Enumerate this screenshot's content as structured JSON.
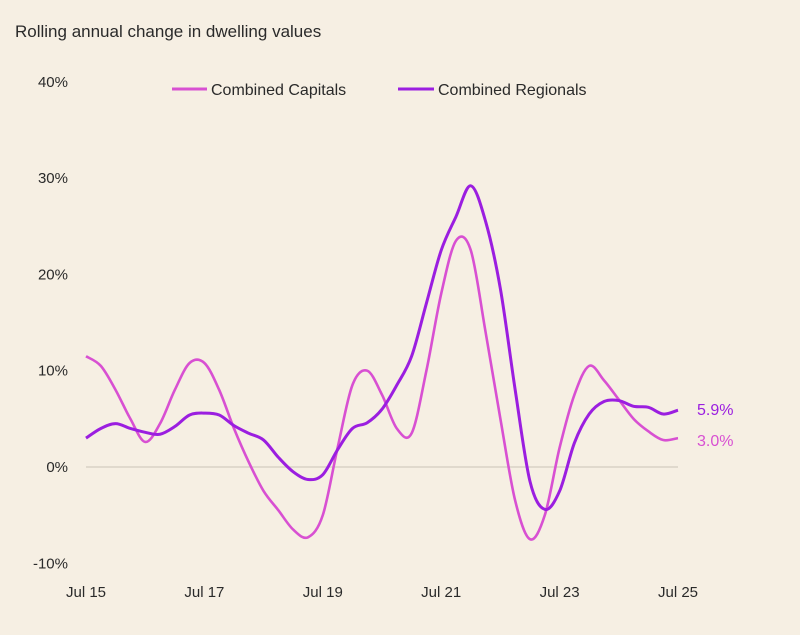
{
  "chart_data": {
    "type": "line",
    "title": "Rolling annual change in dwelling values",
    "xlabel": "",
    "ylabel": "",
    "ylim": [
      -10,
      40
    ],
    "yticks": [
      "-10%",
      "0%",
      "10%",
      "20%",
      "30%",
      "40%"
    ],
    "ytick_values": [
      -10,
      0,
      10,
      20,
      30,
      40
    ],
    "xticks": [
      "Jul 15",
      "Jul 17",
      "Jul 19",
      "Jul 21",
      "Jul 23",
      "Jul 25"
    ],
    "x": [
      "Jul 15",
      "Oct 15",
      "Jan 16",
      "Apr 16",
      "Jul 16",
      "Oct 16",
      "Jan 17",
      "Apr 17",
      "Jul 17",
      "Oct 17",
      "Jan 18",
      "Apr 18",
      "Jul 18",
      "Oct 18",
      "Jan 19",
      "Apr 19",
      "Jul 19",
      "Oct 19",
      "Jan 20",
      "Apr 20",
      "Jul 20",
      "Oct 20",
      "Jan 21",
      "Apr 21",
      "Jul 21",
      "Oct 21",
      "Jan 22",
      "Apr 22",
      "Jul 22",
      "Oct 22",
      "Jan 23",
      "Apr 23",
      "Jul 23",
      "Oct 23",
      "Jan 24",
      "Apr 24",
      "Jul 24",
      "Oct 24",
      "Jan 25",
      "Apr 25",
      "Jul 25"
    ],
    "grid": false,
    "zero_line": true,
    "legend_position": "top",
    "series": [
      {
        "name": "Combined Capitals",
        "color": "#d850d2",
        "end_label": "3.0%",
        "values": [
          11.5,
          10.5,
          8,
          5,
          2.6,
          4.5,
          8,
          10.8,
          10.8,
          8,
          4,
          0.5,
          -2.5,
          -4.5,
          -6.5,
          -7.3,
          -5,
          2,
          8.5,
          10,
          7.5,
          4,
          3.5,
          10,
          18,
          23.5,
          22.5,
          14,
          5,
          -3.5,
          -7.5,
          -5,
          2,
          7.5,
          10.5,
          9,
          7,
          5,
          3.7,
          2.8,
          3.0
        ]
      },
      {
        "name": "Combined Regionals",
        "color": "#9b1ee0",
        "end_label": "5.9%",
        "values": [
          3.0,
          4.0,
          4.5,
          4.0,
          3.6,
          3.4,
          4.2,
          5.4,
          5.6,
          5.4,
          4.3,
          3.5,
          2.8,
          1.0,
          -0.5,
          -1.3,
          -0.8,
          1.8,
          4.0,
          4.6,
          6.0,
          8.5,
          11.5,
          17,
          22.5,
          26,
          29.2,
          25.5,
          18.5,
          8,
          -1.5,
          -4.4,
          -2.5,
          2.5,
          5.5,
          6.8,
          6.9,
          6.3,
          6.2,
          5.5,
          5.9
        ]
      }
    ]
  }
}
